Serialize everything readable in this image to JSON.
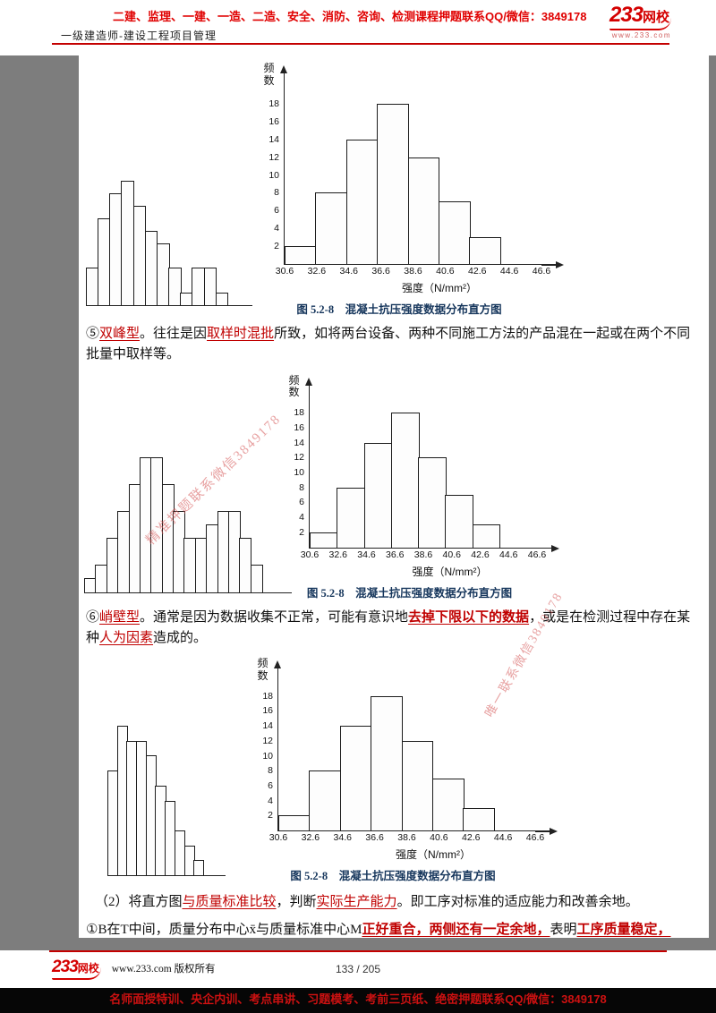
{
  "brand": {
    "num": "233",
    "cn": "网校",
    "url": "www.233.com"
  },
  "header": {
    "promo": "二建、监理、一建、一造、二造、安全、消防、咨询、检测课程押题联系QQ/微信：3849178",
    "course": "一级建造师-建设工程项目管理"
  },
  "page": {
    "p5": {
      "n": "⑤",
      "term": "双峰型",
      "t1": "。往往是因",
      "h1": "取样时混批",
      "t2": "所致，如将两台设备、两种不同施工方法的产品混在一起或在两个不同批量中取样等。"
    },
    "p6": {
      "n": "⑥",
      "term": "峭壁型",
      "t1": "。通常是因为数据收集不正常，可能有意识地",
      "h1": "去掉下限以下的数据",
      "t2": "，或是在检测过程中存在某种",
      "h2": "人为因素",
      "t3": "造成的。"
    },
    "p2": {
      "t1": "（2）将直方图",
      "h1": "与质量标准比较",
      "t2": "，判断",
      "h2": "实际生产能力",
      "t3": "。即工序对标准的适应能力和改善余地。"
    },
    "p1b": {
      "t1": "①B在T中间，质量分布中心x̄与质量标准中心M",
      "h1": "正好重合，两侧还有一定余地，",
      "t2": "表明",
      "h2": "工序质量稳定，"
    },
    "watermark1": "精准押题联系微信3849178",
    "watermark2": "唯一联系微信3849178"
  },
  "footer": {
    "site": "www.233.com 版权所有",
    "page_info": "133 / 205",
    "promo": "名师面授特训、央企内训、考点串讲、习题模考、考前三页纸、绝密押题联系QQ/微信：3849178"
  },
  "chart_data": [
    {
      "id": "histogram-isolated-island",
      "type": "bar",
      "ymax": 10,
      "values": [
        3,
        7,
        9,
        10,
        8,
        6,
        5,
        3,
        1,
        3,
        3,
        1
      ]
    },
    {
      "id": "histogram-standard-1",
      "type": "bar",
      "title": "图 5.2-8　混凝土抗压强度数据分布直方图",
      "ylabel": "频数",
      "xlabel": "强度（N/mm²）",
      "xticks": [
        "30.6",
        "32.6",
        "34.6",
        "36.6",
        "38.6",
        "40.6",
        "42.6",
        "44.6",
        "46.6"
      ],
      "yticks": [
        2,
        4,
        6,
        8,
        10,
        12,
        14,
        16,
        18
      ],
      "ymax": 20,
      "values": [
        2,
        8,
        14,
        18,
        12,
        7,
        3,
        0
      ]
    },
    {
      "id": "histogram-bimodal",
      "type": "bar",
      "ymax": 10,
      "values": [
        1,
        2,
        4,
        6,
        8,
        10,
        10,
        8,
        6,
        4,
        4,
        5,
        6,
        6,
        4,
        2
      ]
    },
    {
      "id": "histogram-standard-2",
      "type": "bar",
      "title": "图 5.2-8　混凝土抗压强度数据分布直方图",
      "ylabel": "频数",
      "xlabel": "强度（N/mm²）",
      "xticks": [
        "30.6",
        "32.6",
        "34.6",
        "36.6",
        "38.6",
        "40.6",
        "42.6",
        "44.6",
        "46.6"
      ],
      "yticks": [
        2,
        4,
        6,
        8,
        10,
        12,
        14,
        16,
        18
      ],
      "ymax": 20,
      "values": [
        2,
        8,
        14,
        18,
        12,
        7,
        3,
        0
      ]
    },
    {
      "id": "histogram-cliff",
      "type": "bar",
      "ymax": 10,
      "values": [
        7,
        10,
        9,
        9,
        8,
        6,
        5,
        3,
        2,
        1
      ]
    },
    {
      "id": "histogram-standard-3",
      "type": "bar",
      "title": "图 5.2-8　混凝土抗压强度数据分布直方图",
      "ylabel": "频数",
      "xlabel": "强度（N/mm²）",
      "xticks": [
        "30.6",
        "32.6",
        "34.6",
        "36.6",
        "38.6",
        "40.6",
        "42.6",
        "44.6",
        "46.6"
      ],
      "yticks": [
        2,
        4,
        6,
        8,
        10,
        12,
        14,
        16,
        18
      ],
      "ymax": 20,
      "values": [
        2,
        8,
        14,
        18,
        12,
        7,
        3,
        0
      ]
    }
  ]
}
